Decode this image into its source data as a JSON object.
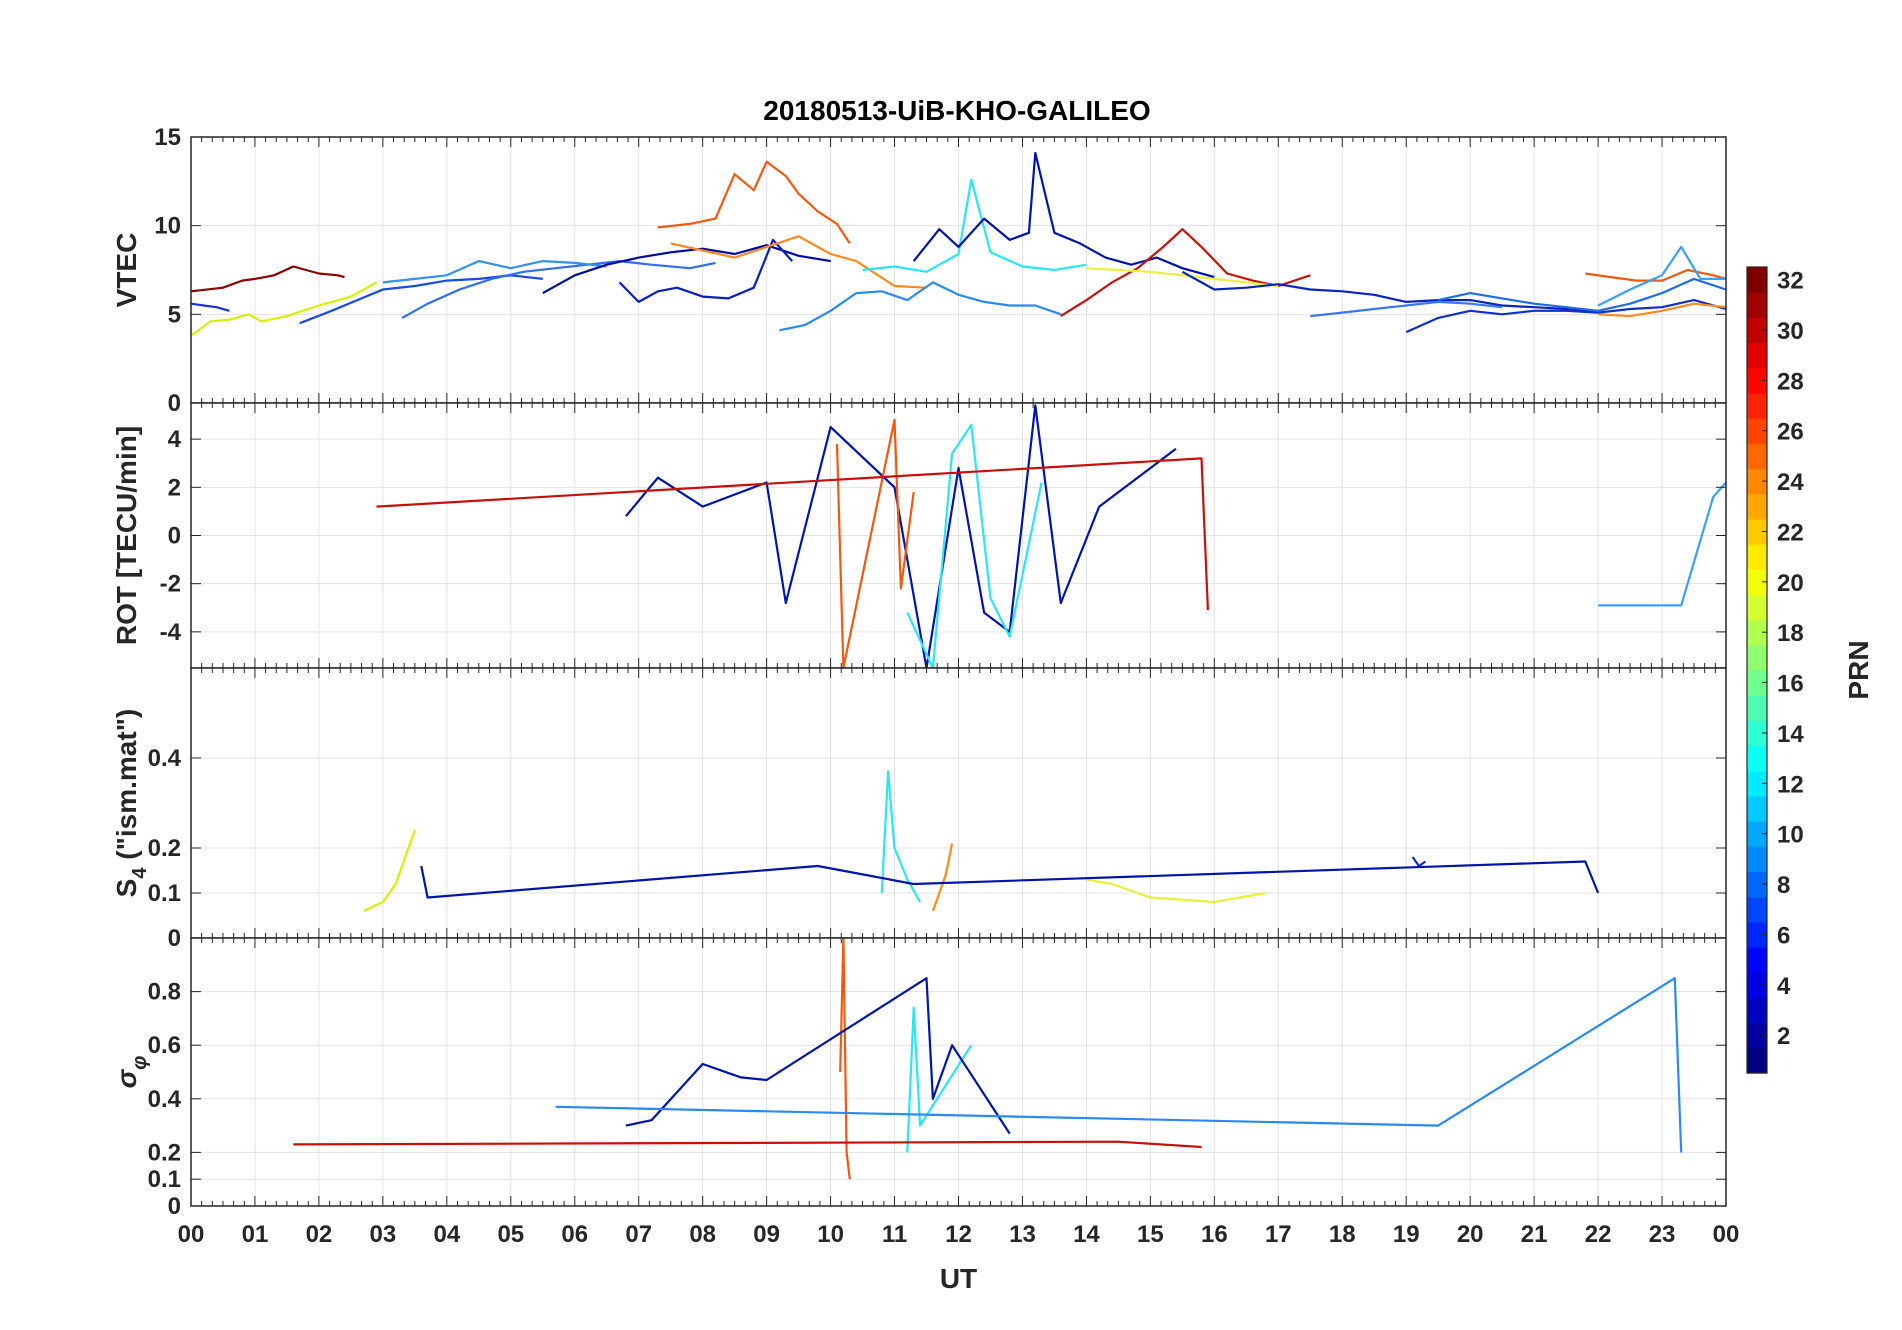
{
  "chart_data": [
    {
      "type": "line",
      "panel": "vtec",
      "title": "20180513-UiB-KHO-GALILEO",
      "xlabel": "",
      "ylabel": "VTEC",
      "xlim": [
        0,
        24
      ],
      "ylim": [
        0,
        15
      ],
      "yticks": [
        0,
        5,
        10,
        15
      ],
      "grid": true,
      "series": [
        {
          "color": "#8B0000",
          "x": [
            0,
            0.5,
            0.8,
            1.0,
            1.3,
            1.6,
            2.0,
            2.3,
            2.4
          ],
          "y": [
            6.3,
            6.5,
            6.9,
            7.0,
            7.2,
            7.7,
            7.3,
            7.2,
            7.1
          ]
        },
        {
          "color": "#D4F200",
          "x": [
            0,
            0.3,
            0.6,
            0.9,
            1.1,
            1.5,
            2.0,
            2.5,
            2.9
          ],
          "y": [
            3.8,
            4.6,
            4.7,
            5.0,
            4.6,
            4.9,
            5.5,
            6.0,
            6.8
          ]
        },
        {
          "color": "#1C2FD0",
          "x": [
            0,
            0.2,
            0.4,
            0.6
          ],
          "y": [
            5.6,
            5.5,
            5.4,
            5.2
          ]
        },
        {
          "color": "#1A4BE0",
          "x": [
            1.7,
            2.2,
            2.6,
            3.0,
            3.5,
            4.0,
            4.5,
            5.0,
            5.5
          ],
          "y": [
            4.5,
            5.2,
            5.8,
            6.4,
            6.6,
            6.9,
            7.0,
            7.2,
            7.0
          ]
        },
        {
          "color": "#2E6EF0",
          "x": [
            3.3,
            3.7,
            4.2,
            4.7,
            5.2,
            5.7,
            6.2,
            6.7,
            7.2,
            7.8,
            8.2
          ],
          "y": [
            4.8,
            5.6,
            6.4,
            7.0,
            7.4,
            7.6,
            7.8,
            8.0,
            7.8,
            7.6,
            7.9
          ]
        },
        {
          "color": "#3590F0",
          "x": [
            3.0,
            3.5,
            4.0,
            4.5,
            5.0,
            5.5,
            6.0,
            6.5
          ],
          "y": [
            6.8,
            7.0,
            7.2,
            8.0,
            7.6,
            8.0,
            7.9,
            7.7
          ]
        },
        {
          "color": "#000C9C",
          "x": [
            5.5,
            6.0,
            6.5,
            7.0,
            7.5,
            8.0,
            8.5,
            9.0,
            9.5,
            10.0
          ],
          "y": [
            6.2,
            7.2,
            7.8,
            8.2,
            8.5,
            8.7,
            8.4,
            8.9,
            8.3,
            8.0
          ]
        },
        {
          "color": "#0A1FB8",
          "x": [
            6.7,
            7.0,
            7.3,
            7.6,
            8.0,
            8.4,
            8.8,
            9.1,
            9.4
          ],
          "y": [
            6.8,
            5.7,
            6.3,
            6.5,
            6.0,
            5.9,
            6.5,
            9.2,
            8.0
          ]
        },
        {
          "color": "#F05A10",
          "x": [
            7.3,
            7.8,
            8.2,
            8.5,
            8.8,
            9.0,
            9.3,
            9.5,
            9.8,
            10.1,
            10.3
          ],
          "y": [
            9.9,
            10.1,
            10.4,
            12.9,
            12.0,
            13.6,
            12.8,
            11.8,
            10.8,
            10.1,
            9.0
          ]
        },
        {
          "color": "#FF8A20",
          "x": [
            7.5,
            8.0,
            8.5,
            9.0,
            9.5,
            10.0,
            10.4,
            11.0,
            11.5
          ],
          "y": [
            9.0,
            8.6,
            8.2,
            8.8,
            9.4,
            8.4,
            8.0,
            6.6,
            6.5
          ]
        },
        {
          "color": "#2B8AF0",
          "x": [
            9.2,
            9.6,
            10.0,
            10.4,
            10.8,
            11.2,
            11.6,
            12.0,
            12.4,
            12.8,
            13.2,
            13.6
          ],
          "y": [
            4.1,
            4.4,
            5.2,
            6.2,
            6.3,
            5.8,
            6.8,
            6.1,
            5.7,
            5.5,
            5.5,
            5.0
          ]
        },
        {
          "color": "#2AE6F0",
          "x": [
            10.5,
            11.0,
            11.5,
            12.0,
            12.2,
            12.5,
            13.0,
            13.5,
            14.0
          ],
          "y": [
            7.5,
            7.7,
            7.4,
            8.4,
            12.6,
            8.5,
            7.7,
            7.5,
            7.8
          ]
        },
        {
          "color": "#0014A8",
          "x": [
            11.3,
            11.7,
            12.0,
            12.4,
            12.8,
            13.1,
            13.2,
            13.5,
            13.9,
            14.3,
            14.7,
            15.1,
            15.5,
            16.0
          ],
          "y": [
            8.0,
            9.8,
            8.8,
            10.4,
            9.2,
            9.6,
            14.1,
            9.6,
            9.0,
            8.2,
            7.8,
            8.2,
            7.6,
            7.1
          ]
        },
        {
          "color": "#C8100A",
          "x": [
            13.6,
            14.0,
            14.4,
            14.8,
            15.2,
            15.5,
            15.8,
            16.2,
            16.6,
            17.0,
            17.5
          ],
          "y": [
            4.9,
            5.8,
            6.8,
            7.6,
            8.8,
            9.8,
            8.8,
            7.3,
            6.9,
            6.6,
            7.2
          ]
        },
        {
          "color": "#E8F040",
          "x": [
            14.0,
            14.5,
            15.0,
            15.5,
            16.0,
            16.5,
            17.0
          ],
          "y": [
            7.6,
            7.5,
            7.4,
            7.2,
            7.0,
            6.8,
            6.6
          ]
        },
        {
          "color": "#0C24BC",
          "x": [
            15.5,
            16.0,
            16.5,
            17.0,
            17.5,
            18.0,
            18.5,
            19.0,
            19.5,
            20.0,
            20.5,
            21.0,
            21.5,
            22.0
          ],
          "y": [
            7.4,
            6.4,
            6.5,
            6.7,
            6.4,
            6.3,
            6.1,
            5.7,
            5.8,
            5.8,
            5.5,
            5.4,
            5.3,
            5.2
          ]
        },
        {
          "color": "#3A78F0",
          "x": [
            17.5,
            18.0,
            18.5,
            19.0,
            19.5,
            20.0,
            20.5
          ],
          "y": [
            4.9,
            5.1,
            5.3,
            5.5,
            5.7,
            5.6,
            5.4
          ]
        },
        {
          "color": "#1030C8",
          "x": [
            19.0,
            19.5,
            20.0,
            20.5,
            21.0,
            21.5,
            22.0,
            22.5,
            23.0,
            23.5,
            24.0
          ],
          "y": [
            4.0,
            4.8,
            5.2,
            5.0,
            5.2,
            5.2,
            5.1,
            5.3,
            5.4,
            5.8,
            5.3
          ]
        },
        {
          "color": "#1E6CE8",
          "x": [
            19.5,
            20.0,
            20.5,
            21.0,
            21.5,
            22.0,
            22.5,
            23.0,
            23.5,
            24.0
          ],
          "y": [
            5.8,
            6.2,
            5.9,
            5.6,
            5.4,
            5.2,
            5.6,
            6.2,
            7.0,
            6.4
          ]
        },
        {
          "color": "#F05A10",
          "x": [
            21.8,
            22.2,
            22.6,
            23.0,
            23.4,
            23.8,
            24.0
          ],
          "y": [
            7.3,
            7.1,
            6.9,
            6.9,
            7.5,
            7.2,
            7.0
          ]
        },
        {
          "color": "#FF8A20",
          "x": [
            22.0,
            22.5,
            23.0,
            23.5,
            24.0
          ],
          "y": [
            5.0,
            4.9,
            5.2,
            5.6,
            5.4
          ]
        },
        {
          "color": "#3AA0F8",
          "x": [
            22.0,
            22.5,
            23.0,
            23.3,
            23.6,
            24.0
          ],
          "y": [
            5.5,
            6.4,
            7.2,
            8.8,
            7.0,
            7.0
          ]
        }
      ]
    },
    {
      "type": "line",
      "panel": "rot",
      "xlabel": "",
      "ylabel": "ROT [TECU/min]",
      "xlim": [
        0,
        24
      ],
      "ylim": [
        -5.5,
        5.5
      ],
      "yticks": [
        -4,
        -2,
        0,
        2,
        4
      ],
      "grid": true,
      "series": [
        {
          "color": "#0014A8",
          "x": [
            6.8,
            7.3,
            8.0,
            9.0,
            9.3,
            10.0,
            11.0,
            11.5,
            12.0,
            12.4,
            12.8,
            13.2,
            13.6,
            14.2,
            15.4
          ],
          "y": [
            0.8,
            2.4,
            1.2,
            2.2,
            -2.8,
            4.5,
            2.0,
            -5.5,
            2.8,
            -3.2,
            -4.0,
            5.4,
            -2.8,
            1.2,
            3.6
          ]
        },
        {
          "color": "#F05A10",
          "x": [
            10.1,
            10.2,
            11.0,
            11.1,
            11.3
          ],
          "y": [
            3.8,
            -5.5,
            4.8,
            -2.2,
            1.8
          ]
        },
        {
          "color": "#2AE6F0",
          "x": [
            11.2,
            11.6,
            11.9,
            12.2,
            12.5,
            12.8,
            13.3
          ],
          "y": [
            -3.2,
            -5.5,
            3.4,
            4.6,
            -2.6,
            -4.2,
            2.2
          ]
        },
        {
          "color": "#C8100A",
          "x": [
            2.9,
            15.8,
            15.9
          ],
          "y": [
            1.2,
            3.2,
            -3.1
          ]
        },
        {
          "color": "#3AA0F8",
          "x": [
            22.0,
            23.3,
            23.8,
            24.0
          ],
          "y": [
            -2.9,
            -2.9,
            1.6,
            2.2
          ]
        }
      ]
    },
    {
      "type": "line",
      "panel": "s4",
      "xlabel": "",
      "ylabel": "S4 (\"ism.mat\")",
      "xlim": [
        0,
        24
      ],
      "ylim": [
        0,
        0.6
      ],
      "yticks": [
        0,
        0.1,
        0.2,
        0.4
      ],
      "grid": true,
      "series": [
        {
          "color": "#D4F200",
          "x": [
            2.7,
            3.0,
            3.2,
            3.4,
            3.5
          ],
          "y": [
            0.06,
            0.08,
            0.12,
            0.2,
            0.24
          ]
        },
        {
          "color": "#2AE6F0",
          "x": [
            10.8,
            10.9,
            11.0,
            11.2,
            11.4
          ],
          "y": [
            0.1,
            0.37,
            0.2,
            0.13,
            0.08
          ]
        },
        {
          "color": "#FF8A20",
          "x": [
            11.6,
            11.8,
            11.9
          ],
          "y": [
            0.06,
            0.14,
            0.21
          ]
        },
        {
          "color": "#E8F040",
          "x": [
            14.0,
            14.4,
            15.0,
            16.0,
            16.8
          ],
          "y": [
            0.13,
            0.12,
            0.09,
            0.08,
            0.1
          ]
        },
        {
          "color": "#1030C8",
          "x": [
            19.1,
            19.2,
            19.3
          ],
          "y": [
            0.18,
            0.16,
            0.17
          ]
        },
        {
          "color": "#0014A8",
          "x": [
            3.6,
            3.7,
            9.8,
            11.3,
            21.8,
            22.0
          ],
          "y": [
            0.16,
            0.09,
            0.16,
            0.12,
            0.17,
            0.1
          ]
        }
      ]
    },
    {
      "type": "line",
      "panel": "sigma_phi",
      "xlabel": "UT",
      "ylabel": "σφ",
      "xlim": [
        0,
        24
      ],
      "ylim": [
        0,
        1.0
      ],
      "yticks": [
        0,
        0.1,
        0.2,
        0.4,
        0.6,
        0.8
      ],
      "xtick_labels": [
        "00",
        "01",
        "02",
        "03",
        "04",
        "05",
        "06",
        "07",
        "08",
        "09",
        "10",
        "11",
        "12",
        "13",
        "14",
        "15",
        "16",
        "17",
        "18",
        "19",
        "20",
        "21",
        "22",
        "23",
        "00"
      ],
      "grid": true,
      "series": [
        {
          "color": "#F05A10",
          "x": [
            10.15,
            10.2,
            10.25,
            10.3
          ],
          "y": [
            0.5,
            1.0,
            0.2,
            0.1
          ]
        },
        {
          "color": "#2AE6F0",
          "x": [
            11.2,
            11.3,
            11.4,
            12.2
          ],
          "y": [
            0.2,
            0.74,
            0.3,
            0.6
          ]
        },
        {
          "color": "#0014A8",
          "x": [
            6.8,
            7.2,
            8.0,
            8.6,
            9.0,
            11.5,
            11.6,
            11.9,
            12.8
          ],
          "y": [
            0.3,
            0.32,
            0.53,
            0.48,
            0.47,
            0.85,
            0.4,
            0.6,
            0.27
          ]
        },
        {
          "color": "#2B8AF0",
          "x": [
            5.7,
            19.5,
            23.2,
            23.3
          ],
          "y": [
            0.37,
            0.3,
            0.85,
            0.2
          ]
        },
        {
          "color": "#C8100A",
          "x": [
            1.6,
            14.5,
            15.8
          ],
          "y": [
            0.23,
            0.24,
            0.22
          ]
        }
      ]
    },
    {
      "type": "colorbar",
      "label": "PRN",
      "range": [
        1,
        32
      ],
      "ticks": [
        2,
        4,
        6,
        8,
        10,
        12,
        14,
        16,
        18,
        20,
        22,
        24,
        26,
        28,
        30,
        32
      ],
      "colormap": "jet"
    }
  ]
}
